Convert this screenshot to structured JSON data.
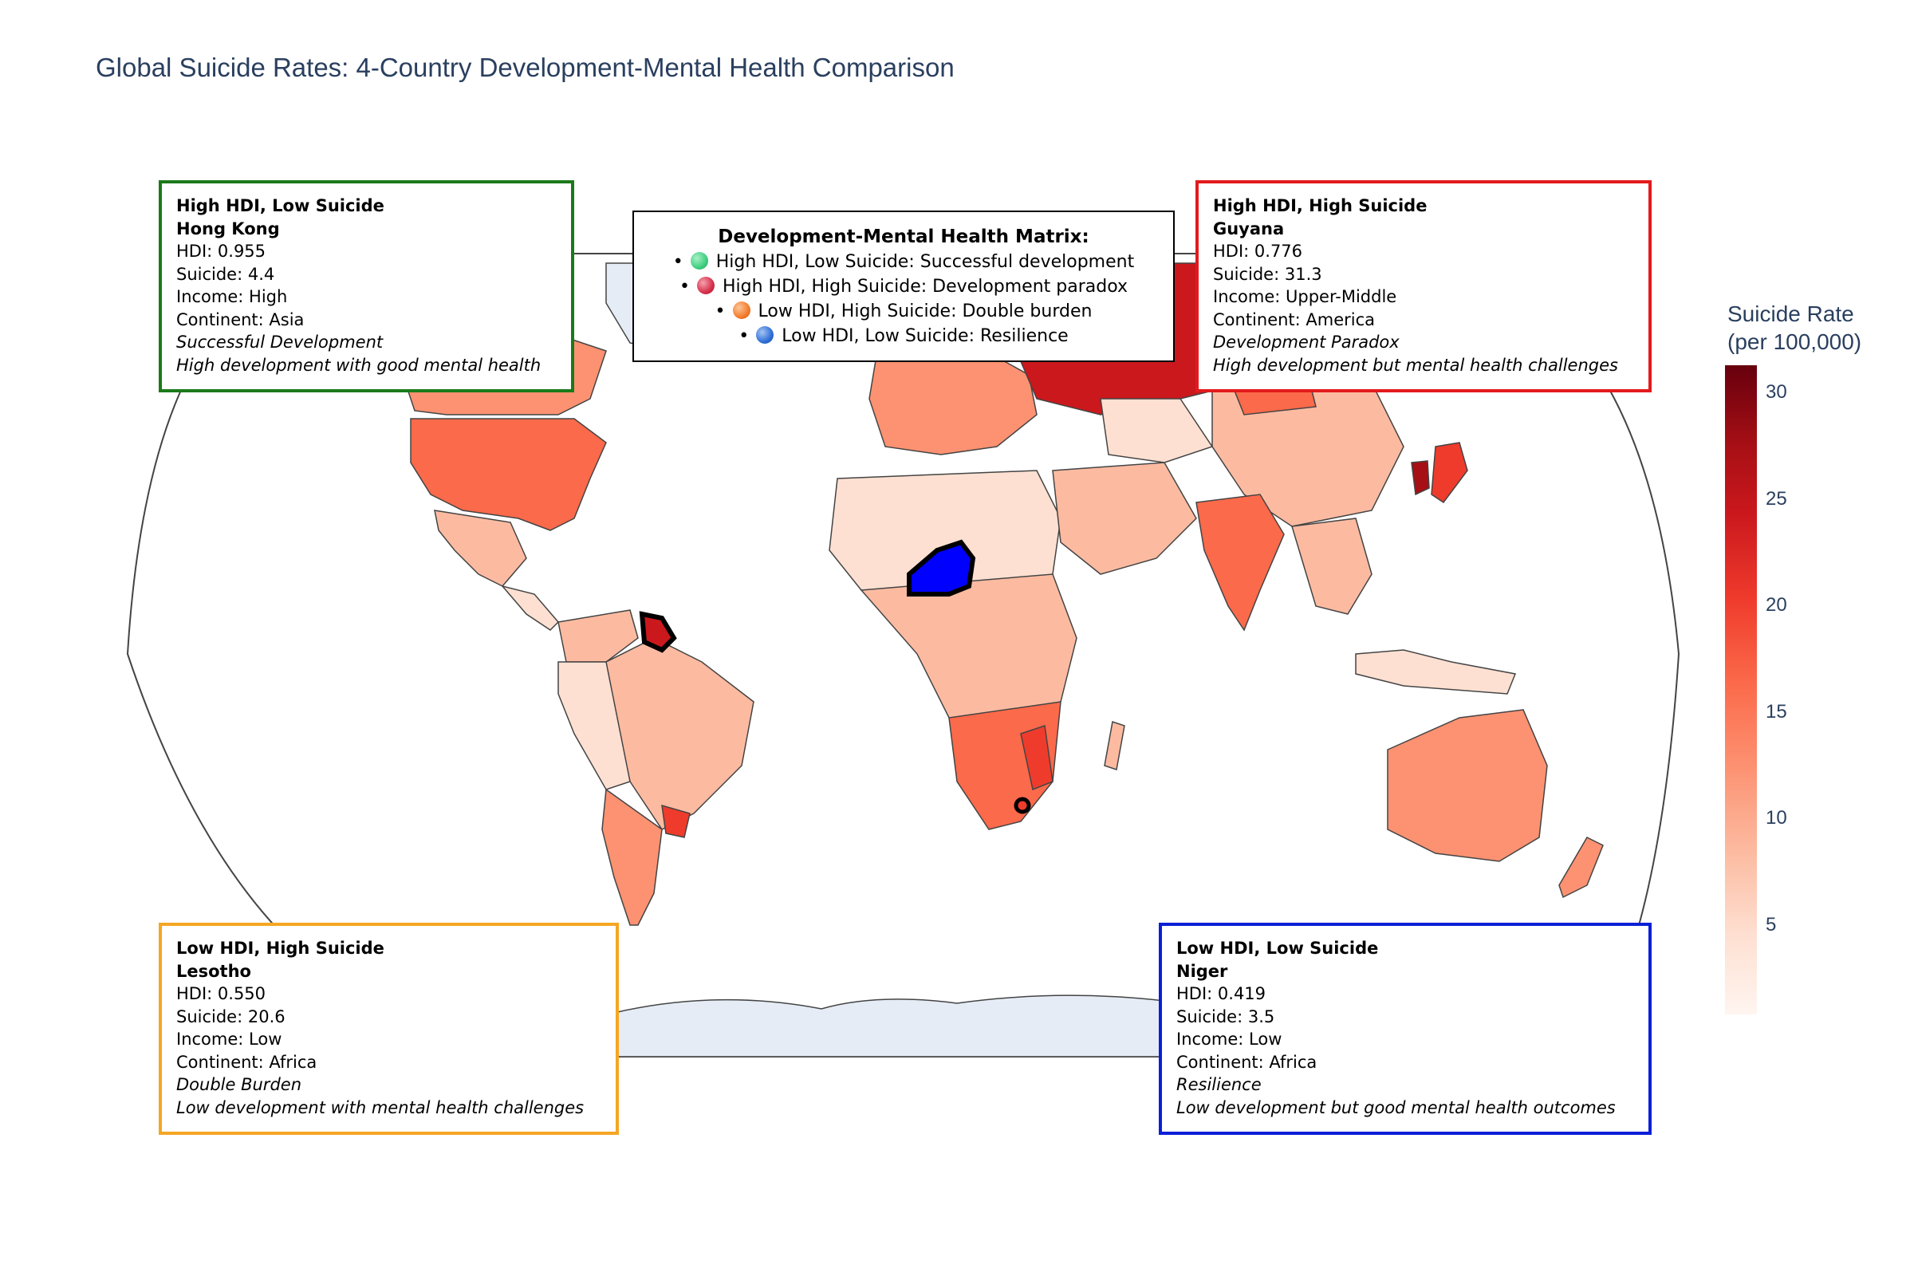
{
  "title": "Global Suicide Rates: 4-Country Development-Mental Health Comparison",
  "colorbar": {
    "title_line1": "Suicide Rate",
    "title_line2": "(per 100,000)",
    "ticks": [
      "30",
      "25",
      "20",
      "15",
      "10",
      "5"
    ],
    "colorscale": [
      "#fff5f0",
      "#fee0d2",
      "#fcbba1",
      "#fc9272",
      "#fb6a4a",
      "#ef3b2c",
      "#cb181d",
      "#a50f15",
      "#67000d"
    ]
  },
  "matrix_legend": {
    "title": "Development-Mental Health Matrix:",
    "items": [
      {
        "label": "High HDI, Low Suicide: Successful development",
        "color": "#3fcf7f"
      },
      {
        "label": "High HDI, High Suicide: Development paradox",
        "color": "#d6304a"
      },
      {
        "label": "Low HDI, High Suicide: Double burden",
        "color": "#f47c2c"
      },
      {
        "label": "Low HDI, Low Suicide: Resilience",
        "color": "#2f6fd6"
      }
    ]
  },
  "annotations": {
    "hong_kong": {
      "category": "High HDI, Low Suicide",
      "country": "Hong Kong",
      "hdi": "HDI: 0.955",
      "suicide": "Suicide: 4.4",
      "income": "Income: High",
      "continent": "Continent: Asia",
      "label": "Successful Development",
      "desc": "High development with good mental health",
      "border": "#1a7a1a"
    },
    "guyana": {
      "category": "High HDI, High Suicide",
      "country": "Guyana",
      "hdi": "HDI: 0.776",
      "suicide": "Suicide: 31.3",
      "income": "Income: Upper-Middle",
      "continent": "Continent: America",
      "label": "Development Paradox",
      "desc": "High development but mental health challenges",
      "border": "#e31a1c"
    },
    "lesotho": {
      "category": "Low HDI, High Suicide",
      "country": "Lesotho",
      "hdi": "HDI: 0.550",
      "suicide": "Suicide: 20.6",
      "income": "Income: Low",
      "continent": "Continent: Africa",
      "label": "Double Burden",
      "desc": "Low development with mental health challenges",
      "border": "#f5a623"
    },
    "niger": {
      "category": "Low HDI, Low Suicide",
      "country": "Niger",
      "hdi": "HDI: 0.419",
      "suicide": "Suicide: 3.5",
      "income": "Income: Low",
      "continent": "Continent: Africa",
      "label": "Resilience",
      "desc": "Low development but good mental health outcomes",
      "border": "#0a1fd6"
    }
  },
  "map_colors": {
    "ocean": "#ffffff",
    "land_nodata": "#e5ecf6",
    "highlight_niger": "#0000ff",
    "border": "#444444"
  }
}
